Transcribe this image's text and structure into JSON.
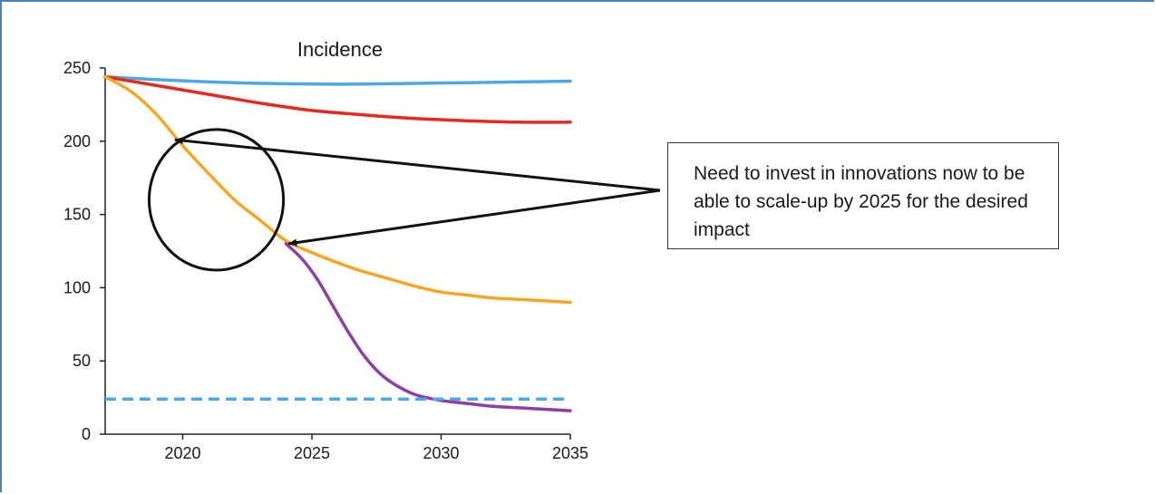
{
  "chart_data": {
    "type": "line",
    "title": "Incidence",
    "xlabel": "",
    "ylabel": "",
    "xlim": [
      2017,
      2035
    ],
    "ylim": [
      0,
      250
    ],
    "x_ticks": [
      2020,
      2025,
      2030,
      2035
    ],
    "y_ticks": [
      0,
      50,
      100,
      150,
      200,
      250
    ],
    "grid": false,
    "series": [
      {
        "color": "#4aa8e8",
        "style": "solid",
        "x": [
          2017,
          2019,
          2021,
          2023,
          2025,
          2027,
          2029,
          2031,
          2033,
          2035
        ],
        "y": [
          244,
          242,
          240.5,
          239.5,
          239,
          239,
          239.5,
          240,
          240.5,
          241
        ]
      },
      {
        "color": "#e8281e",
        "style": "solid",
        "x": [
          2017,
          2019,
          2021,
          2023,
          2025,
          2027,
          2029,
          2031,
          2033,
          2035
        ],
        "y": [
          244,
          238,
          232,
          226,
          221,
          218,
          215.5,
          214,
          213,
          213
        ]
      },
      {
        "color": "#f5a623",
        "style": "solid",
        "x": [
          2017,
          2018,
          2019,
          2020,
          2021,
          2022,
          2023,
          2024,
          2025,
          2026,
          2027,
          2028,
          2029,
          2030,
          2031,
          2032,
          2033,
          2034,
          2035
        ],
        "y": [
          244,
          234,
          218,
          197,
          178,
          160,
          146,
          132,
          124,
          117,
          111,
          106,
          101,
          97,
          95,
          93,
          92,
          91,
          90
        ]
      },
      {
        "color": "#8e3fa6",
        "style": "solid",
        "x": [
          2024,
          2024.6,
          2025.2,
          2025.8,
          2026.4,
          2027,
          2027.6,
          2028.2,
          2029,
          2030,
          2031,
          2032,
          2033,
          2034,
          2035
        ],
        "y": [
          130,
          120,
          106,
          88,
          70,
          54,
          42,
          34,
          27,
          23,
          21,
          19,
          18,
          17,
          16
        ]
      },
      {
        "color": "#4aa8e8",
        "style": "dashed",
        "x": [
          2017,
          2035
        ],
        "y": [
          24,
          24
        ]
      }
    ],
    "annotations": [
      {
        "type": "ellipse",
        "center": [
          2021.3,
          160
        ],
        "radius_x": 2.6,
        "radius_y": 48
      },
      {
        "type": "arrow",
        "to": [
          2019.7,
          201
        ]
      },
      {
        "type": "arrow",
        "to": [
          2024.1,
          130
        ]
      }
    ]
  },
  "annotation_text": "Need to invest in innovations now to be able to scale-up by 2025 for the desired impact",
  "colors": {
    "frame": "#4a7ec9",
    "axis": "#222222",
    "annotation": "#111111"
  }
}
